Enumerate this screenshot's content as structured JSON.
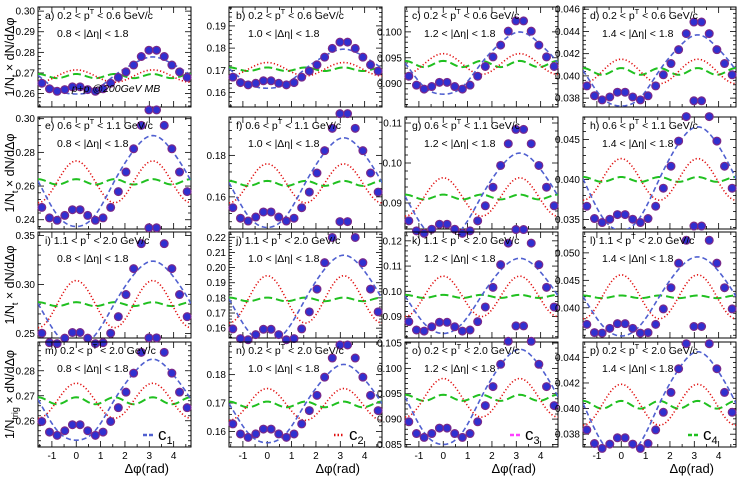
{
  "chart_data": {
    "type": "scatter",
    "description_units": "per-trigger pair yield vs azimuthal separation",
    "xlabel": "Δφ(rad)",
    "xlim": [
      -1.5707963,
      4.712389
    ],
    "xticks": [
      -1,
      0,
      1,
      2,
      3,
      4
    ],
    "ylabels": [
      "1/N",
      "× dN/dΔφ"
    ],
    "ylabel_sub": "t",
    "ylabel_sub_bottom": "trig",
    "collision_label": "p+p @200GeV MB",
    "legend": [
      {
        "label": "c",
        "sub": "1",
        "color": "#5060d0",
        "dash": "5,3"
      },
      {
        "label": "c",
        "sub": "2",
        "color": "#e01010",
        "dash": "1.2,2.2"
      },
      {
        "label": "c",
        "sub": "3",
        "color": "#ff40ff",
        "dash": "5,3"
      },
      {
        "label": "c",
        "sub": "4",
        "color": "#20c020",
        "dash": "8,4"
      }
    ],
    "marker_color": "#3030d0",
    "marker_edge": "#7a2a8a",
    "rows": [
      {
        "pt_label": "0.2 < p",
        "pt_sup": "T",
        "pt_tail": " < 0.6 GeV/c"
      },
      {
        "pt_label": "0.6 < p",
        "pt_sup": "T",
        "pt_tail": " < 1.1 GeV/c"
      },
      {
        "pt_label": "1.1 < p",
        "pt_sup": "T",
        "pt_tail": " < 2.0 GeV/c"
      },
      {
        "pt_label": "0.2 < p",
        "pt_sup": "T",
        "pt_tail": " < 2.0 GeV/c"
      }
    ],
    "cols": [
      {
        "eta_label": "0.8 < |Δη| < 1.8"
      },
      {
        "eta_label": "1.0 < |Δη| < 1.8"
      },
      {
        "eta_label": "1.2 < |Δη| < 1.8"
      },
      {
        "eta_label": "1.4 < |Δη| < 1.8"
      }
    ],
    "panels": [
      {
        "letter": "a)",
        "ylim": [
          0.2535,
          0.302
        ],
        "yticks": [
          "0.26",
          "0.27",
          "0.28",
          "0.29",
          "0.30"
        ],
        "ytickvals": [
          0.26,
          0.27,
          0.28,
          0.29,
          0.3
        ],
        "b0": 0.2685,
        "c1": -0.0045,
        "c2": 0.0015,
        "c3": 0.0,
        "c4": 0.0005,
        "c1q": 1.0
      },
      {
        "letter": "b)",
        "ylim": [
          0.1535,
          0.1985
        ],
        "yticks": [
          "0.16",
          "0.17",
          "0.18",
          "0.19"
        ],
        "ytickvals": [
          0.16,
          0.17,
          0.18,
          0.19
        ],
        "b0": 0.1705,
        "c1": -0.0044,
        "c2": 0.0015,
        "c3": 0.0,
        "c4": 0.0004,
        "c1q": 1.0
      },
      {
        "letter": "c)",
        "ylim": [
          0.0855,
          0.1048
        ],
        "yticks": [
          "0.090",
          "0.095",
          "0.100"
        ],
        "ytickvals": [
          0.09,
          0.095,
          0.1
        ],
        "b0": 0.0938,
        "c1": -0.003,
        "c2": 0.001,
        "c3": 0.0,
        "c4": 0.0003,
        "c1q": 1.0
      },
      {
        "letter": "d)",
        "ylim": [
          0.0372,
          0.0462
        ],
        "yticks": [
          "0.038",
          "0.040",
          "0.042",
          "0.044",
          "0.046"
        ],
        "ytickvals": [
          0.038,
          0.04,
          0.042,
          0.044,
          0.046
        ],
        "b0": 0.0404,
        "c1": -0.0016,
        "c2": 0.00055,
        "c3": 0.0,
        "c4": 0.00015,
        "c1q": 1.0
      },
      {
        "letter": "e)",
        "ylim": [
          0.2345,
          0.301
        ],
        "yticks": [
          "0.24",
          "0.26",
          "0.28",
          "0.30"
        ],
        "ytickvals": [
          0.24,
          0.26,
          0.28,
          0.3
        ],
        "b0": 0.2625,
        "c1": -0.015,
        "c2": 0.0062,
        "c3": 0.0,
        "c4": 0.0008,
        "c1q": 0.9
      },
      {
        "letter": "f)",
        "ylim": [
          0.1445,
          0.1985
        ],
        "yticks": [
          "0.16",
          "0.18"
        ],
        "ytickvals": [
          0.16,
          0.18
        ],
        "b0": 0.1665,
        "c1": -0.012,
        "c2": 0.0047,
        "c3": 0.0,
        "c4": 0.0006,
        "c1q": 0.9
      },
      {
        "letter": "g)",
        "ylim": [
          0.0835,
          0.1115
        ],
        "yticks": [
          "0.09",
          "0.10",
          "0.11"
        ],
        "ytickvals": [
          0.09,
          0.1,
          0.11
        ],
        "b0": 0.0915,
        "c1": -0.006,
        "c2": 0.0024,
        "c3": 0.0,
        "c4": 0.0003,
        "c1q": 0.9
      },
      {
        "letter": "h)",
        "ylim": [
          0.0338,
          0.0478
        ],
        "yticks": [
          "0.035",
          "0.040",
          "0.045"
        ],
        "ytickvals": [
          0.035,
          0.04,
          0.045
        ],
        "b0": 0.04,
        "c1": -0.0036,
        "c2": 0.0013,
        "c3": 0.0,
        "c4": 0.00015,
        "c1q": 0.9
      },
      {
        "letter": "i)",
        "ylim": [
          0.2455,
          0.3535
        ],
        "yticks": [
          "0.25",
          "0.30",
          "0.35"
        ],
        "ytickvals": [
          0.25,
          0.3,
          0.35
        ],
        "b0": 0.28,
        "c1": -0.027,
        "c2": 0.012,
        "c3": 0.0,
        "c4": 0.001,
        "c1q": 0.8
      },
      {
        "letter": "j)",
        "ylim": [
          0.1535,
          0.2235
        ],
        "yticks": [
          "0.16",
          "0.17",
          "0.18",
          "0.19",
          "0.20",
          "0.21",
          "0.22"
        ],
        "ytickvals": [
          0.16,
          0.17,
          0.18,
          0.19,
          0.2,
          0.21,
          0.22
        ],
        "b0": 0.179,
        "c1": -0.018,
        "c2": 0.0078,
        "c3": 0.0,
        "c4": 0.0006,
        "c1q": 0.8
      },
      {
        "letter": "k)",
        "ylim": [
          0.0815,
          0.1235
        ],
        "yticks": [
          "0.09",
          "0.10",
          "0.11",
          "0.12"
        ],
        "ytickvals": [
          0.09,
          0.1,
          0.11,
          0.12
        ],
        "b0": 0.098,
        "c1": -0.0093,
        "c2": 0.004,
        "c3": 0.0,
        "c4": 0.0003,
        "c1q": 0.8
      },
      {
        "letter": "l)",
        "ylim": [
          0.0345,
          0.0538
        ],
        "yticks": [
          "0.040",
          "0.045",
          "0.050"
        ],
        "ytickvals": [
          0.04,
          0.045,
          0.05
        ],
        "b0": 0.042,
        "c1": -0.0045,
        "c2": 0.002,
        "c3": 0.0,
        "c4": 0.00012,
        "c1q": 0.8
      },
      {
        "letter": "m)",
        "ylim": [
          0.2495,
          0.2915
        ],
        "yticks": [
          "0.26",
          "0.27",
          "0.28"
        ],
        "ytickvals": [
          0.26,
          0.27,
          0.28
        ],
        "b0": 0.268,
        "c1": -0.0088,
        "c2": 0.0035,
        "c3": 0.0,
        "c4": 0.0007,
        "c1q": 0.92
      },
      {
        "letter": "n)",
        "ylim": [
          0.1545,
          0.1915
        ],
        "yticks": [
          "0.16",
          "0.17",
          "0.18"
        ],
        "ytickvals": [
          0.16,
          0.17,
          0.18
        ],
        "b0": 0.1695,
        "c1": -0.0075,
        "c2": 0.0028,
        "c3": 0.0,
        "c4": 0.0005,
        "c1q": 0.92
      },
      {
        "letter": "o)",
        "ylim": [
          0.0845,
          0.1052
        ],
        "yticks": [
          "0.085",
          "0.090",
          "0.095",
          "0.100",
          "0.105"
        ],
        "ytickvals": [
          0.085,
          0.09,
          0.095,
          0.1,
          0.105
        ],
        "b0": 0.0942,
        "c1": -0.0051,
        "c2": 0.0019,
        "c3": 0.0,
        "c4": 0.0003,
        "c1q": 0.92
      },
      {
        "letter": "p)",
        "ylim": [
          0.037,
          0.0452
        ],
        "yticks": [
          "0.038",
          "0.040",
          "0.042",
          "0.044"
        ],
        "ytickvals": [
          0.038,
          0.04,
          0.042,
          0.044
        ],
        "b0": 0.0403,
        "c1": -0.0022,
        "c2": 0.0008,
        "c3": 0.0,
        "c4": 0.00015,
        "c1q": 0.92
      }
    ]
  }
}
